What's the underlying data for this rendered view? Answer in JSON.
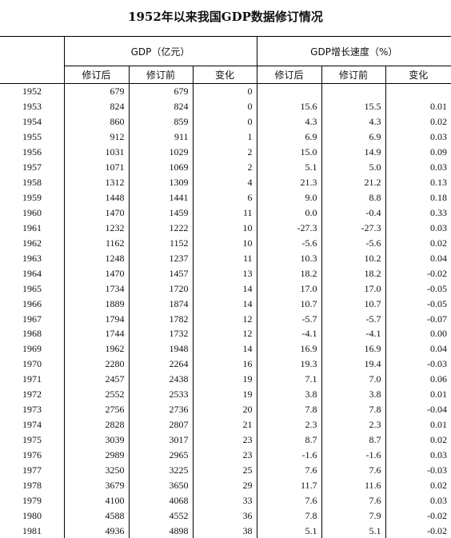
{
  "title": "1952年以来我国GDP数据修订情况",
  "groups": {
    "gdp": "GDP（亿元）",
    "growth": "GDP增长速度（%）"
  },
  "subheaders": [
    "修订后",
    "修订前",
    "变化",
    "修订后",
    "修订前",
    "变化"
  ],
  "rows": [
    [
      "1952",
      "679",
      "679",
      "0",
      "",
      "",
      ""
    ],
    [
      "1953",
      "824",
      "824",
      "0",
      "15.6",
      "15.5",
      "0.01"
    ],
    [
      "1954",
      "860",
      "859",
      "0",
      "4.3",
      "4.3",
      "0.02"
    ],
    [
      "1955",
      "912",
      "911",
      "1",
      "6.9",
      "6.9",
      "0.03"
    ],
    [
      "1956",
      "1031",
      "1029",
      "2",
      "15.0",
      "14.9",
      "0.09"
    ],
    [
      "1957",
      "1071",
      "1069",
      "2",
      "5.1",
      "5.0",
      "0.03"
    ],
    [
      "1958",
      "1312",
      "1309",
      "4",
      "21.3",
      "21.2",
      "0.13"
    ],
    [
      "1959",
      "1448",
      "1441",
      "6",
      "9.0",
      "8.8",
      "0.18"
    ],
    [
      "1960",
      "1470",
      "1459",
      "11",
      "0.0",
      "-0.4",
      "0.33"
    ],
    [
      "1961",
      "1232",
      "1222",
      "10",
      "-27.3",
      "-27.3",
      "0.03"
    ],
    [
      "1962",
      "1162",
      "1152",
      "10",
      "-5.6",
      "-5.6",
      "0.02"
    ],
    [
      "1963",
      "1248",
      "1237",
      "11",
      "10.3",
      "10.2",
      "0.04"
    ],
    [
      "1964",
      "1470",
      "1457",
      "13",
      "18.2",
      "18.2",
      "-0.02"
    ],
    [
      "1965",
      "1734",
      "1720",
      "14",
      "17.0",
      "17.0",
      "-0.05"
    ],
    [
      "1966",
      "1889",
      "1874",
      "14",
      "10.7",
      "10.7",
      "-0.05"
    ],
    [
      "1967",
      "1794",
      "1782",
      "12",
      "-5.7",
      "-5.7",
      "-0.07"
    ],
    [
      "1968",
      "1744",
      "1732",
      "12",
      "-4.1",
      "-4.1",
      "0.00"
    ],
    [
      "1969",
      "1962",
      "1948",
      "14",
      "16.9",
      "16.9",
      "0.04"
    ],
    [
      "1970",
      "2280",
      "2264",
      "16",
      "19.3",
      "19.4",
      "-0.03"
    ],
    [
      "1971",
      "2457",
      "2438",
      "19",
      "7.1",
      "7.0",
      "0.06"
    ],
    [
      "1972",
      "2552",
      "2533",
      "19",
      "3.8",
      "3.8",
      "0.01"
    ],
    [
      "1973",
      "2756",
      "2736",
      "20",
      "7.8",
      "7.8",
      "-0.04"
    ],
    [
      "1974",
      "2828",
      "2807",
      "21",
      "2.3",
      "2.3",
      "0.01"
    ],
    [
      "1975",
      "3039",
      "3017",
      "23",
      "8.7",
      "8.7",
      "0.02"
    ],
    [
      "1976",
      "2989",
      "2965",
      "23",
      "-1.6",
      "-1.6",
      "0.03"
    ],
    [
      "1977",
      "3250",
      "3225",
      "25",
      "7.6",
      "7.6",
      "-0.03"
    ],
    [
      "1978",
      "3679",
      "3650",
      "29",
      "11.7",
      "11.6",
      "0.02"
    ],
    [
      "1979",
      "4100",
      "4068",
      "33",
      "7.6",
      "7.6",
      "0.03"
    ],
    [
      "1980",
      "4588",
      "4552",
      "36",
      "7.8",
      "7.9",
      "-0.02"
    ],
    [
      "1981",
      "4936",
      "4898",
      "38",
      "5.1",
      "5.1",
      "-0.02"
    ]
  ]
}
